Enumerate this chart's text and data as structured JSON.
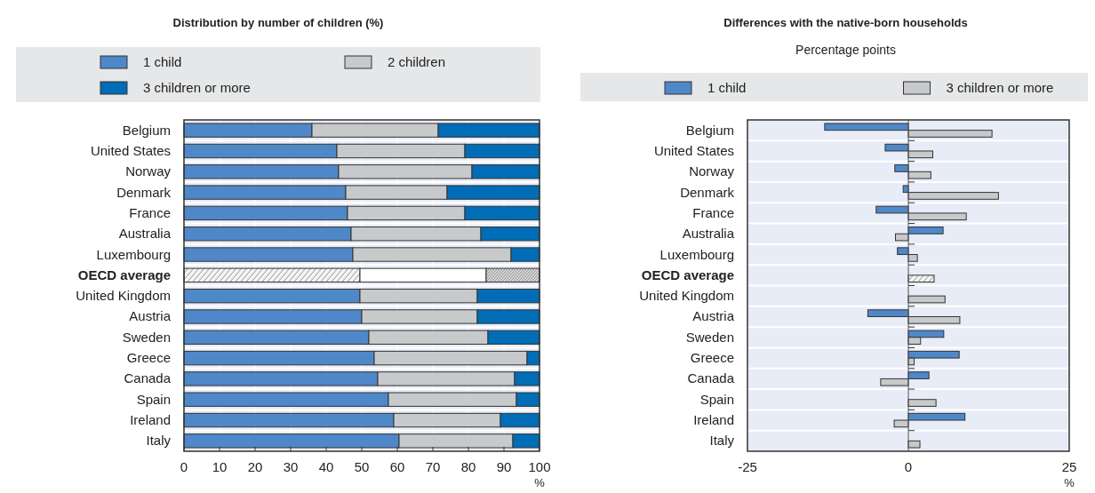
{
  "chart_data": [
    {
      "type": "bar",
      "orientation": "horizontal",
      "stacked": true,
      "title": "Distribution by number of children (%)",
      "xlabel": "%",
      "categories": [
        "Belgium",
        "United States",
        "Norway",
        "Denmark",
        "France",
        "Australia",
        "Luxembourg",
        "OECD average",
        "United Kingdom",
        "Austria",
        "Sweden",
        "Greece",
        "Canada",
        "Spain",
        "Ireland",
        "Italy"
      ],
      "series": [
        {
          "name": "1 child",
          "color": "#4f88c8",
          "values": [
            36,
            43,
            43.5,
            45.5,
            46,
            47,
            47.5,
            49.5,
            49.5,
            50,
            52,
            53.5,
            54.5,
            57.5,
            59,
            60.5
          ],
          "colors": [
            "#4f88c8",
            "#4f88c8",
            "#4f88c8",
            "#4f88c8",
            "#4f88c8",
            "#4f88c8",
            "#4f88c8",
            "#f4f4f4",
            "#4f88c8",
            "#4f88c8",
            "#4f88c8",
            "#4f88c8",
            "#4f88c8",
            "#4f88c8",
            "#4f88c8",
            "#4f88c8"
          ]
        },
        {
          "name": "2 children",
          "color": "#c8c9cb",
          "values": [
            35.5,
            36,
            37.5,
            28.5,
            33,
            36.5,
            44.5,
            35.5,
            33,
            32.5,
            33.5,
            43,
            38.5,
            36,
            30,
            32
          ],
          "colors": [
            "#c8c9cb",
            "#c8c9cb",
            "#c8c9cb",
            "#c8c9cb",
            "#c8c9cb",
            "#c8c9cb",
            "#c8c9cb",
            "#ffffff",
            "#c8c9cb",
            "#c8c9cb",
            "#c8c9cb",
            "#c8c9cb",
            "#c8c9cb",
            "#c8c9cb",
            "#c8c9cb",
            "#c8c9cb"
          ]
        },
        {
          "name": "3 children or more",
          "color": "#006db6",
          "values": [
            28.5,
            21,
            19,
            26,
            21,
            16.5,
            8,
            15,
            17.5,
            17.5,
            14.5,
            3.5,
            7,
            6.5,
            11,
            7.5
          ],
          "colors": [
            "#006db6",
            "#006db6",
            "#006db6",
            "#006db6",
            "#006db6",
            "#006db6",
            "#006db6",
            "#dddddd",
            "#006db6",
            "#006db6",
            "#006db6",
            "#006db6",
            "#006db6",
            "#006db6",
            "#006db6",
            "#006db6"
          ]
        }
      ],
      "xlim": [
        0,
        100
      ],
      "xticks": [
        0,
        10,
        20,
        30,
        40,
        50,
        60,
        70,
        80,
        90,
        100
      ],
      "grid": "x",
      "legend": "top"
    },
    {
      "type": "bar",
      "orientation": "horizontal",
      "title": "Differences with the native-born households",
      "subtitle": "Percentage points",
      "xlabel": "%",
      "categories": [
        "Belgium",
        "United States",
        "Norway",
        "Denmark",
        "France",
        "Australia",
        "Luxembourg",
        "OECD average",
        "United Kingdom",
        "Austria",
        "Sweden",
        "Greece",
        "Canada",
        "Spain",
        "Ireland",
        "Italy"
      ],
      "series": [
        {
          "name": "1 child",
          "color": "#4f88c8",
          "values": [
            -13,
            -3.6,
            -2.1,
            -0.8,
            -5,
            5.4,
            -1.7,
            null,
            null,
            -6.3,
            5.5,
            7.9,
            3.2,
            null,
            8.8,
            null
          ]
        },
        {
          "name": "3 children or more",
          "color": "#c8c9cb",
          "values": [
            13,
            3.8,
            3.5,
            14,
            9,
            -2,
            1.4,
            4,
            5.7,
            8,
            1.9,
            0.9,
            -4.3,
            4.3,
            -2.2,
            1.8
          ],
          "colors": [
            "#c8c9cb",
            "#c8c9cb",
            "#c8c9cb",
            "#c8c9cb",
            "#c8c9cb",
            "#c8c9cb",
            "#c8c9cb",
            "#f4f4f4",
            "#c8c9cb",
            "#c8c9cb",
            "#c8c9cb",
            "#c8c9cb",
            "#c8c9cb",
            "#c8c9cb",
            "#c8c9cb",
            "#c8c9cb"
          ]
        }
      ],
      "xlim": [
        -25,
        25
      ],
      "xticks": [
        -25,
        0,
        25
      ],
      "legend": "top"
    }
  ]
}
